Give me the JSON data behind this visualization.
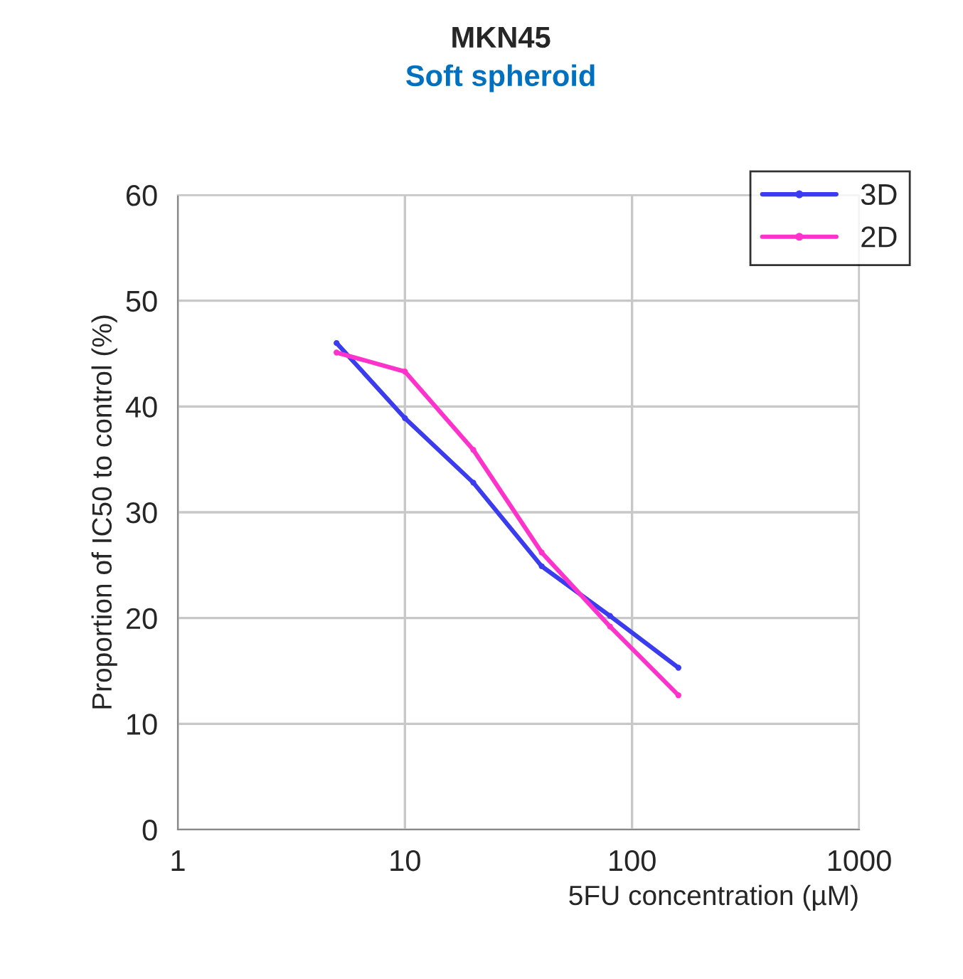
{
  "chart_data": {
    "type": "line",
    "title": "MKN45",
    "subtitle": "Soft spheroid",
    "xlabel": "5FU concentration (µM)",
    "ylabel": "Proportion of IC50 to control (%)",
    "x": [
      5,
      10,
      20,
      40,
      80,
      160
    ],
    "series": [
      {
        "name": "3D",
        "color": "#3b3bf0",
        "values": [
          46.0,
          38.9,
          32.8,
          24.9,
          20.2,
          15.3
        ]
      },
      {
        "name": "2D",
        "color": "#ff33cc",
        "values": [
          45.1,
          43.3,
          35.9,
          26.2,
          19.2,
          12.7
        ]
      }
    ],
    "log": "x",
    "xlim": [
      1,
      1000
    ],
    "xticks": [
      1,
      10,
      100,
      1000
    ],
    "ylim": [
      0,
      60
    ],
    "yticks": [
      0,
      10,
      20,
      30,
      40,
      50,
      60
    ],
    "grid": true,
    "legend": "top right",
    "marker": "circle",
    "line_style": "solid"
  }
}
